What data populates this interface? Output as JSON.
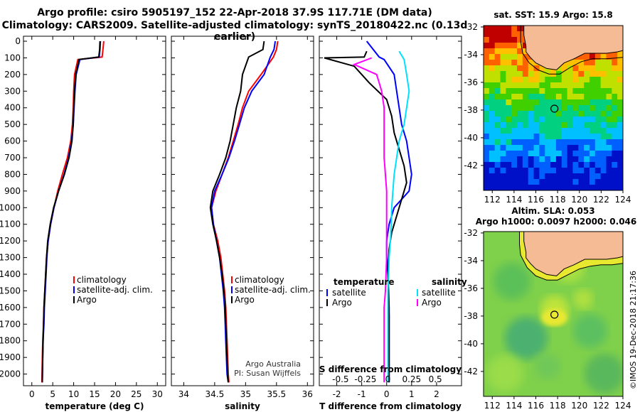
{
  "header": {
    "title_line1": "Argo profile: csiro 5905197_152 22-Apr-2018 37.9S 117.71E (DM data)",
    "title_line2": "Climatology: CARS2009. Satellite-adjusted climatology: synTS_20180422.nc (0.13d earlier)"
  },
  "colors": {
    "climatology": "#ff0000",
    "satellite": "#0000ff",
    "argo": "#000000",
    "sat_salinity": "#00e0ff",
    "argo_salinity": "#ff00ff",
    "land": "#f4bb94"
  },
  "chart_data": [
    {
      "type": "line",
      "id": "temperature",
      "xlabel": "temperature (deg C)",
      "xticks": [
        0,
        5,
        10,
        15,
        20,
        25,
        30
      ],
      "xlim": [
        -2,
        32
      ],
      "ylim": [
        2070,
        -30
      ],
      "yticks": [
        0,
        100,
        200,
        300,
        400,
        500,
        600,
        700,
        800,
        900,
        1000,
        1100,
        1200,
        1300,
        1400,
        1500,
        1600,
        1700,
        1800,
        1900,
        2000
      ],
      "legend": [
        "climatology",
        "satellite-adj. clim.",
        "Argo"
      ],
      "series": [
        {
          "name": "climatology",
          "color": "#ff0000",
          "x": [
            17.2,
            17.0,
            16.8,
            11.0,
            10.2,
            10.0,
            9.9,
            9.7,
            9.3,
            8.5,
            7.3,
            6.2,
            5.3,
            4.5,
            3.9,
            3.5,
            3.3,
            3.1,
            2.9,
            2.8,
            2.6,
            2.5,
            2.4
          ],
          "y": [
            0,
            50,
            95,
            110,
            200,
            300,
            400,
            500,
            600,
            700,
            800,
            900,
            1000,
            1100,
            1200,
            1300,
            1400,
            1500,
            1600,
            1700,
            1800,
            1900,
            2050
          ]
        },
        {
          "name": "satellite-adj. clim.",
          "color": "#0000ff",
          "x": [
            16.4,
            16.3,
            16.1,
            11.5,
            10.6,
            10.3,
            10.1,
            9.9,
            9.5,
            8.8,
            7.7,
            6.4,
            5.3,
            4.5,
            3.9,
            3.6,
            3.4,
            3.2,
            3.0,
            2.9,
            2.7,
            2.6,
            2.5
          ],
          "y": [
            0,
            50,
            95,
            110,
            200,
            300,
            400,
            500,
            600,
            700,
            800,
            900,
            1000,
            1100,
            1200,
            1300,
            1400,
            1500,
            1600,
            1700,
            1800,
            1900,
            2050
          ]
        },
        {
          "name": "Argo",
          "color": "#000000",
          "x": [
            16.3,
            16.2,
            16.0,
            11.3,
            10.5,
            10.2,
            10.0,
            9.9,
            9.6,
            8.9,
            7.8,
            6.4,
            5.2,
            4.4,
            3.8,
            3.5,
            3.3,
            3.1,
            2.9,
            2.8,
            2.7,
            2.6,
            2.5
          ],
          "y": [
            0,
            50,
            95,
            110,
            200,
            300,
            400,
            500,
            600,
            700,
            800,
            900,
            1000,
            1100,
            1200,
            1300,
            1400,
            1500,
            1600,
            1700,
            1800,
            1900,
            2050
          ]
        }
      ]
    },
    {
      "type": "line",
      "id": "salinity",
      "xlabel": "salinity",
      "xticks": [
        34,
        34.5,
        35,
        35.5,
        36
      ],
      "xtick_labels": [
        "34",
        "34.5",
        "35",
        "35.5",
        "36"
      ],
      "xlim": [
        33.8,
        36.1
      ],
      "ylim": [
        2070,
        -30
      ],
      "legend": [
        "climatology",
        "satellite-adj. clim.",
        "Argo"
      ],
      "annotations": [
        "Argo Australia",
        "PI: Susan Wijffels"
      ],
      "series": [
        {
          "name": "climatology",
          "color": "#ff0000",
          "x": [
            35.52,
            35.5,
            35.45,
            35.25,
            35.05,
            34.95,
            34.88,
            34.8,
            34.72,
            34.62,
            34.52,
            34.45,
            34.48,
            34.55,
            34.6,
            34.63,
            34.66,
            34.68,
            34.69,
            34.7,
            34.71,
            34.72,
            34.73
          ],
          "y": [
            0,
            50,
            95,
            200,
            300,
            400,
            500,
            600,
            700,
            800,
            900,
            1000,
            1100,
            1200,
            1300,
            1400,
            1500,
            1600,
            1700,
            1800,
            1900,
            2000,
            2050
          ]
        },
        {
          "name": "satellite-adj. clim.",
          "color": "#0000ff",
          "x": [
            35.48,
            35.46,
            35.4,
            35.3,
            35.1,
            34.98,
            34.9,
            34.82,
            34.73,
            34.62,
            34.5,
            34.45,
            34.48,
            34.53,
            34.58,
            34.61,
            34.64,
            34.66,
            34.67,
            34.68,
            34.69,
            34.7,
            34.72
          ],
          "y": [
            0,
            50,
            95,
            200,
            300,
            400,
            500,
            600,
            700,
            800,
            900,
            1000,
            1100,
            1200,
            1300,
            1400,
            1500,
            1600,
            1700,
            1800,
            1900,
            2000,
            2050
          ]
        },
        {
          "name": "Argo",
          "color": "#000000",
          "x": [
            35.3,
            35.28,
            35.05,
            34.95,
            34.92,
            34.85,
            34.8,
            34.75,
            34.68,
            34.58,
            34.47,
            34.43,
            34.47,
            34.53,
            34.58,
            34.62,
            34.65,
            34.67,
            34.68,
            34.69,
            34.7,
            34.71,
            34.72
          ],
          "y": [
            0,
            50,
            95,
            200,
            300,
            400,
            500,
            600,
            700,
            800,
            900,
            1000,
            1100,
            1200,
            1300,
            1400,
            1500,
            1600,
            1700,
            1800,
            1900,
            2000,
            2050
          ]
        }
      ]
    },
    {
      "type": "line",
      "id": "difference",
      "xlabel": "T difference from climatology",
      "xticks": [
        -2,
        -1,
        0,
        1,
        2
      ],
      "xlim": [
        -2.7,
        3.0
      ],
      "ylim": [
        2070,
        -30
      ],
      "top_axis_label": "S difference from climatology",
      "top_ticks": [
        "-0.5",
        "-0.25",
        "0",
        "0.25",
        "0.5"
      ],
      "legend_left_title": "temperature",
      "legend_right_title": "salinity",
      "legend_left": [
        "satellite",
        "Argo"
      ],
      "legend_right": [
        "satellite",
        "Argo"
      ],
      "series": [
        {
          "name": "temperature satellite",
          "color": "#0000ff",
          "x": [
            -0.8,
            -0.3,
            -0.1,
            0.3,
            0.4,
            0.5,
            0.6,
            0.8,
            0.9,
            1.0,
            0.9,
            0.3,
            0.1,
            0.0,
            0.0,
            0.05,
            0.08,
            0.1,
            0.1,
            0.1,
            0.1,
            0.1
          ],
          "y": [
            0,
            95,
            110,
            200,
            300,
            400,
            500,
            600,
            700,
            800,
            900,
            1000,
            1100,
            1200,
            1300,
            1400,
            1500,
            1600,
            1700,
            1800,
            1900,
            2050
          ]
        },
        {
          "name": "temperature Argo",
          "color": "#000000",
          "x": [
            -0.8,
            -0.9,
            -2.5,
            -1.3,
            -0.7,
            0.0,
            0.2,
            0.3,
            0.5,
            0.7,
            0.8,
            0.6,
            0.4,
            0.2,
            0.1,
            0.05,
            0.06,
            0.08,
            0.1,
            0.1,
            0.1,
            0.1
          ],
          "y": [
            60,
            95,
            100,
            150,
            250,
            350,
            450,
            550,
            650,
            750,
            850,
            950,
            1050,
            1150,
            1250,
            1350,
            1450,
            1550,
            1650,
            1750,
            1850,
            2050
          ]
        },
        {
          "name": "salinity satellite",
          "color": "#00e0ff",
          "x": [
            0.5,
            0.7,
            0.8,
            0.9,
            0.8,
            0.7,
            0.5,
            0.4,
            0.3,
            0.25,
            0.2,
            0.18,
            0.15,
            0.1,
            0.08,
            0.05,
            0.05,
            0.05,
            0.05
          ],
          "y": [
            60,
            110,
            200,
            300,
            400,
            500,
            600,
            700,
            800,
            900,
            1000,
            1100,
            1200,
            1300,
            1400,
            1500,
            1700,
            1900,
            2050
          ]
        },
        {
          "name": "salinity Argo",
          "color": "#ff00ff",
          "x": [
            -0.6,
            -1.3,
            -0.4,
            -0.2,
            -0.1,
            -0.1,
            -0.1,
            -0.1,
            0.0,
            0.0,
            0.0,
            -0.05,
            -0.1,
            -0.1,
            -0.1,
            -0.1
          ],
          "y": [
            100,
            140,
            200,
            300,
            400,
            500,
            600,
            700,
            900,
            1100,
            1300,
            1500,
            1600,
            1700,
            1900,
            2050
          ]
        }
      ]
    },
    {
      "type": "heatmap",
      "id": "sst_map",
      "title": "sat. SST: 15.9 Argo: 15.8",
      "xticks": [
        "112",
        "114",
        "116",
        "118",
        "120",
        "122",
        "124"
      ],
      "yticks": [
        "-32",
        "-34",
        "-36",
        "-38",
        "-40",
        "-42"
      ],
      "marker": {
        "lon": 117.71,
        "lat": -37.9
      }
    },
    {
      "type": "heatmap",
      "id": "sla_map",
      "title_line1": "Altim. SLA: 0.053",
      "title_line2": "Argo h1000: 0.0097 h2000: 0.046",
      "xticks": [
        "112",
        "114",
        "116",
        "118",
        "120",
        "122",
        "124"
      ],
      "yticks": [
        "-32",
        "-34",
        "-36",
        "-38",
        "-40",
        "-42"
      ],
      "marker": {
        "lon": 117.71,
        "lat": -37.9
      }
    }
  ],
  "footer": {
    "stamp": "©IMOS 19-Dec-2018 21:17:36"
  }
}
